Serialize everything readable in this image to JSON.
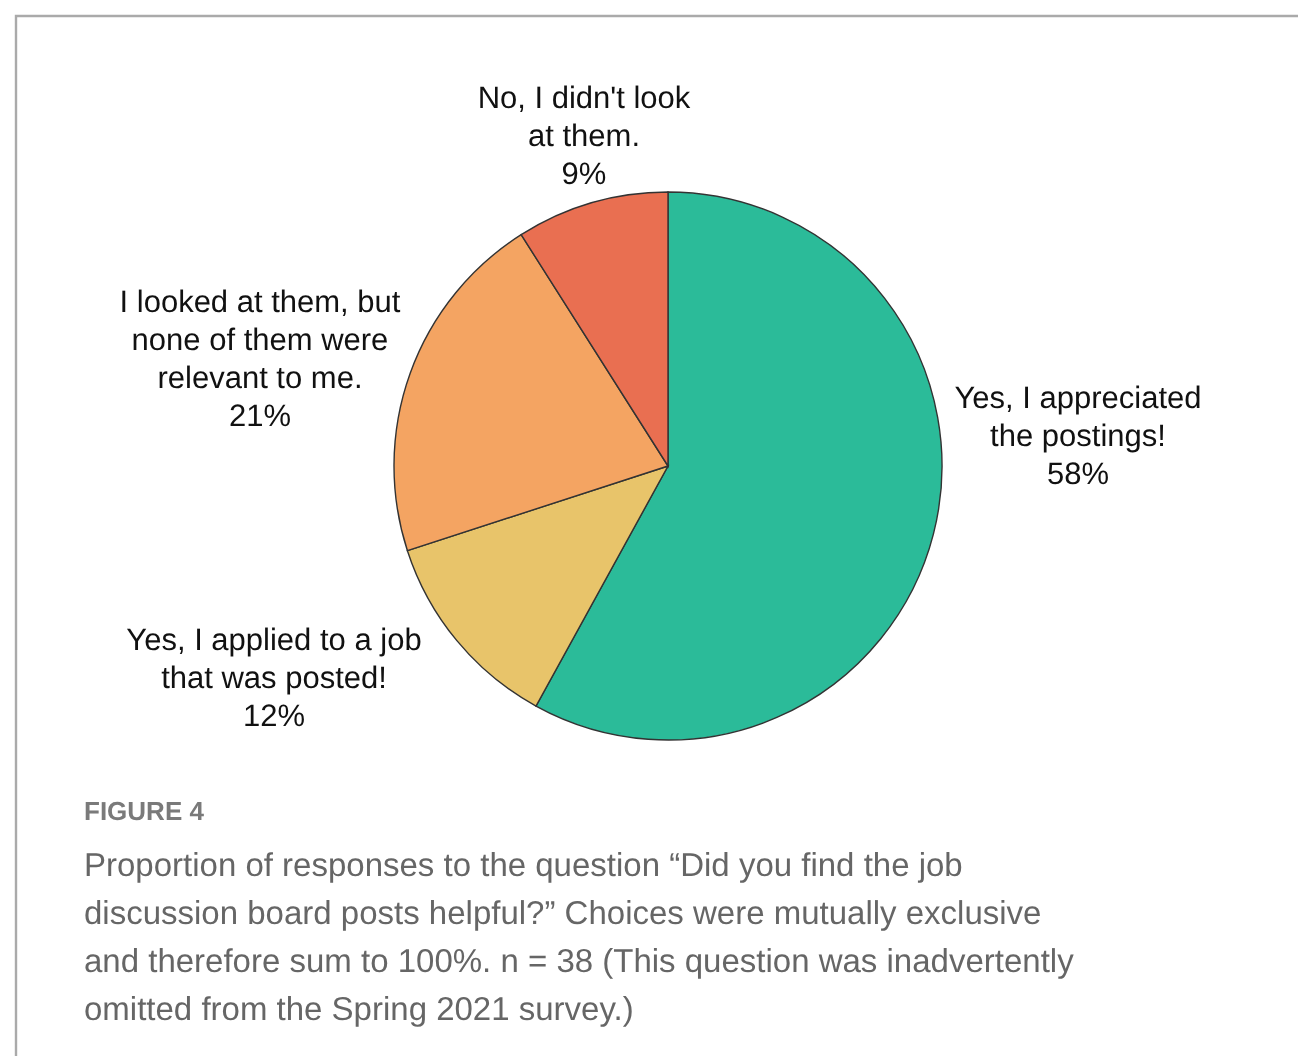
{
  "chart_data": {
    "type": "pie",
    "categories": [
      "Yes, I appreciated the postings!",
      "Yes, I applied to a job that was posted!",
      "I looked at them, but none of them were relevant to me.",
      "No, I didn't look at them."
    ],
    "values": [
      58,
      12,
      21,
      9
    ],
    "value_labels": [
      "58%",
      "12%",
      "21%",
      "9%"
    ],
    "colors": [
      "#2bbb99",
      "#e8c46a",
      "#f4a462",
      "#e96f51"
    ],
    "annotations": [
      "FIGURE 4",
      "Proportion of responses to the question “Did you find the job discussion board posts helpful?” Choices were mutually exclusive and therefore sum to 100%. n = 38 (This question was inadvertently omitted from the Spring 2021 survey.)"
    ]
  }
}
